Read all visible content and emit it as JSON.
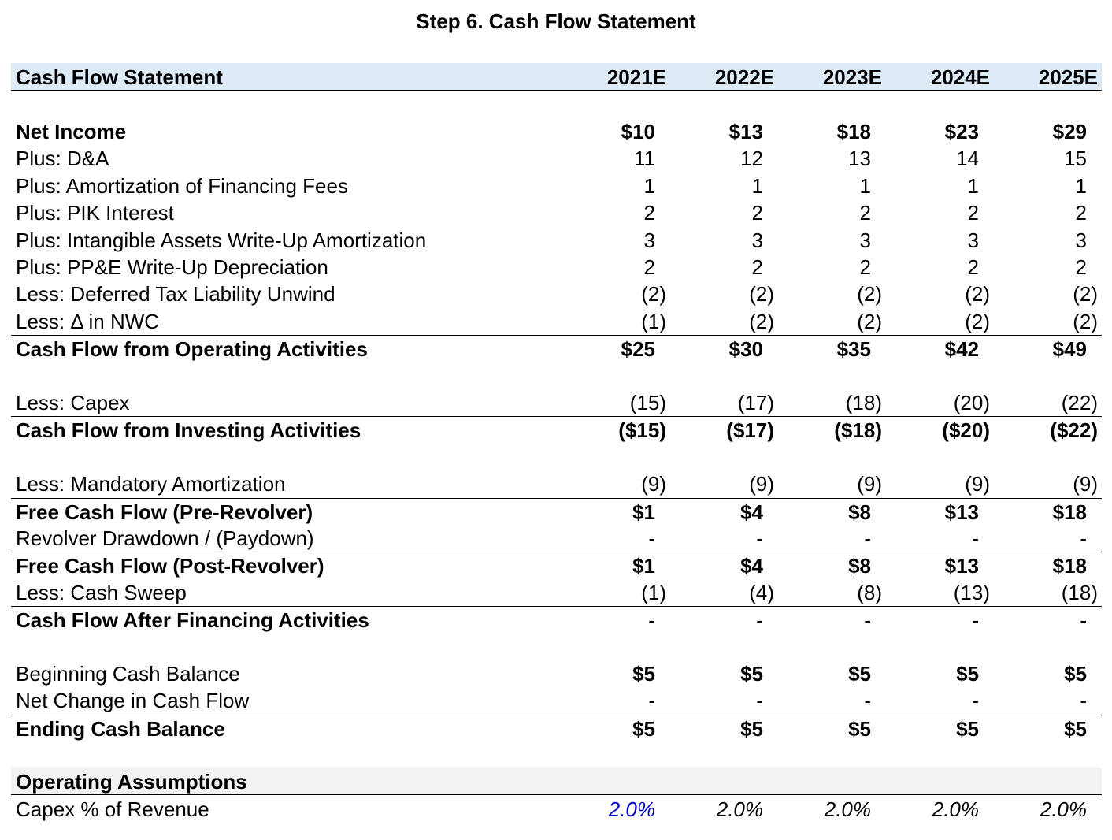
{
  "title": "Step 6. Cash Flow Statement",
  "header": {
    "label": "Cash Flow Statement",
    "years": [
      "2021E",
      "2022E",
      "2023E",
      "2024E",
      "2025E"
    ]
  },
  "rows": {
    "net_income": {
      "label": "Net Income",
      "values": [
        "$10",
        "$13",
        "$18",
        "$23",
        "$29"
      ]
    },
    "da": {
      "label": "Plus: D&A",
      "values": [
        "11",
        "12",
        "13",
        "14",
        "15"
      ]
    },
    "amort_fees": {
      "label": "Plus: Amortization of Financing Fees",
      "values": [
        "1",
        "1",
        "1",
        "1",
        "1"
      ]
    },
    "pik": {
      "label": "Plus: PIK Interest",
      "values": [
        "2",
        "2",
        "2",
        "2",
        "2"
      ]
    },
    "intangible": {
      "label": "Plus: Intangible Assets Write-Up Amortization",
      "values": [
        "3",
        "3",
        "3",
        "3",
        "3"
      ]
    },
    "ppe": {
      "label": "Plus: PP&E Write-Up Depreciation",
      "values": [
        "2",
        "2",
        "2",
        "2",
        "2"
      ]
    },
    "dtl": {
      "label": "Less: Deferred Tax Liability Unwind",
      "values": [
        "(2)",
        "(2)",
        "(2)",
        "(2)",
        "(2)"
      ]
    },
    "nwc": {
      "label": "Less: Δ in NWC",
      "values": [
        "(1)",
        "(2)",
        "(2)",
        "(2)",
        "(2)"
      ]
    },
    "cfo": {
      "label": "Cash Flow from Operating Activities",
      "values": [
        "$25",
        "$30",
        "$35",
        "$42",
        "$49"
      ]
    },
    "capex": {
      "label": "Less: Capex",
      "values": [
        "(15)",
        "(17)",
        "(18)",
        "(20)",
        "(22)"
      ]
    },
    "cfi": {
      "label": "Cash Flow from Investing Activities",
      "values": [
        "($15)",
        "($17)",
        "($18)",
        "($20)",
        "($22)"
      ]
    },
    "mand_amort": {
      "label": "Less: Mandatory Amortization",
      "values": [
        "(9)",
        "(9)",
        "(9)",
        "(9)",
        "(9)"
      ]
    },
    "fcf_pre": {
      "label": "Free Cash Flow (Pre-Revolver)",
      "values": [
        "$1",
        "$4",
        "$8",
        "$13",
        "$18"
      ]
    },
    "revolver": {
      "label": "Revolver Drawdown / (Paydown)",
      "values": [
        "-",
        "-",
        "-",
        "-",
        "-"
      ]
    },
    "fcf_post": {
      "label": "Free Cash Flow (Post-Revolver)",
      "values": [
        "$1",
        "$4",
        "$8",
        "$13",
        "$18"
      ]
    },
    "sweep": {
      "label": "Less: Cash Sweep",
      "values": [
        "(1)",
        "(4)",
        "(8)",
        "(13)",
        "(18)"
      ]
    },
    "cf_after_fin": {
      "label": "Cash Flow After Financing Activities",
      "values": [
        "-",
        "-",
        "-",
        "-",
        "-"
      ]
    },
    "begin_cash": {
      "label": "Beginning Cash Balance",
      "values": [
        "$5",
        "$5",
        "$5",
        "$5",
        "$5"
      ]
    },
    "net_change": {
      "label": "Net Change in Cash Flow",
      "values": [
        "-",
        "-",
        "-",
        "-",
        "-"
      ]
    },
    "end_cash": {
      "label": "Ending Cash Balance",
      "values": [
        "$5",
        "$5",
        "$5",
        "$5",
        "$5"
      ]
    }
  },
  "assumptions": {
    "label": "Operating Assumptions",
    "capex_pct": {
      "label": "Capex % of Revenue",
      "values": [
        "2.0%",
        "2.0%",
        "2.0%",
        "2.0%",
        "2.0%"
      ]
    }
  },
  "colors": {
    "header_bg": "#ddebf7",
    "section_bg": "#f2f2f2",
    "input_blue": "#0000cc"
  }
}
